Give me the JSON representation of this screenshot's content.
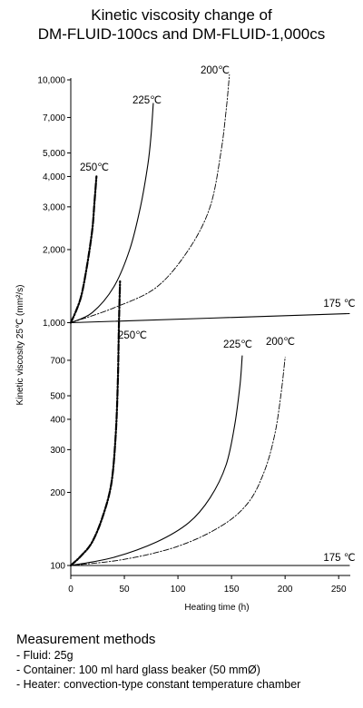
{
  "header": {
    "title_line1": "Kinetic viscosity change of",
    "title_line2": "DM-FLUID-100cs and DM-FLUID-1,000cs"
  },
  "chart_data": {
    "type": "line",
    "xlabel": "Heating time (h)",
    "ylabel": "Kinetic viscosity 25℃ (mm²/s)",
    "xlim": [
      0,
      260
    ],
    "ylim": [
      100,
      10000
    ],
    "yscale": "log",
    "x_ticks": [
      0,
      50,
      100,
      150,
      200,
      250
    ],
    "y_ticks": [
      100,
      200,
      300,
      400,
      500,
      700,
      1000,
      2000,
      3000,
      4000,
      5000,
      7000,
      10000
    ],
    "y_tick_labels": [
      "100",
      "200",
      "300",
      "400",
      "500",
      "700",
      "1,000",
      "2,000",
      "3,000",
      "4,000",
      "5,000",
      "7,000",
      "10,000"
    ],
    "grid": false,
    "series": [
      {
        "name": "250℃",
        "fluid": "DM-FLUID-1,000cs",
        "style": "dash-dot-bold",
        "x": [
          0,
          5,
          10,
          15,
          20,
          22,
          24
        ],
        "y": [
          1000,
          1120,
          1300,
          1700,
          2400,
          3100,
          4000
        ]
      },
      {
        "name": "225℃",
        "fluid": "DM-FLUID-1,000cs",
        "style": "solid",
        "x": [
          0,
          20,
          40,
          55,
          65,
          72,
          75,
          77
        ],
        "y": [
          1000,
          1100,
          1400,
          2000,
          3000,
          4500,
          6000,
          8000
        ]
      },
      {
        "name": "200℃",
        "fluid": "DM-FLUID-1,000cs",
        "style": "dash-dot",
        "x": [
          0,
          40,
          80,
          110,
          130,
          140,
          145,
          148
        ],
        "y": [
          1000,
          1150,
          1400,
          2000,
          3000,
          5000,
          7500,
          10500
        ]
      },
      {
        "name": "175 ℃",
        "fluid": "DM-FLUID-1,000cs",
        "style": "solid",
        "x": [
          0,
          260
        ],
        "y": [
          1000,
          1090
        ]
      },
      {
        "name": "250℃",
        "fluid": "DM-FLUID-100cs",
        "style": "dash-dot-bold",
        "x": [
          0,
          10,
          20,
          30,
          38,
          42,
          44,
          45,
          46
        ],
        "y": [
          100,
          110,
          125,
          160,
          220,
          350,
          600,
          1000,
          1480
        ]
      },
      {
        "name": "225℃",
        "fluid": "DM-FLUID-100cs",
        "style": "solid",
        "x": [
          0,
          40,
          80,
          110,
          130,
          145,
          153,
          158,
          160
        ],
        "y": [
          100,
          108,
          125,
          150,
          190,
          260,
          380,
          560,
          730
        ]
      },
      {
        "name": "200℃",
        "fluid": "DM-FLUID-100cs",
        "style": "dash-dot",
        "x": [
          0,
          50,
          100,
          140,
          165,
          180,
          190,
          196,
          200
        ],
        "y": [
          100,
          106,
          120,
          145,
          180,
          240,
          340,
          500,
          720
        ]
      },
      {
        "name": "175 ℃",
        "fluid": "DM-FLUID-100cs",
        "style": "solid",
        "x": [
          0,
          260
        ],
        "y": [
          100,
          100
        ]
      }
    ]
  },
  "methods": {
    "heading": "Measurement methods",
    "items": [
      "- Fluid: 25g",
      "- Container: 100 ml hard glass beaker (50 mmØ)",
      "- Heater: convection-type constant temperature chamber"
    ]
  }
}
